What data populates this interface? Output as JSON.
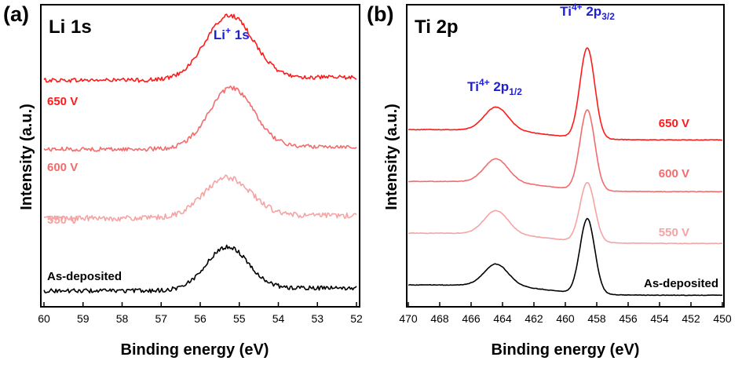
{
  "chart_data": [
    {
      "type": "line",
      "panel_letter": "(a)",
      "title": "Li 1s",
      "peak_labels": [
        {
          "base": "Li",
          "sup": "+",
          "rest": " 1s",
          "x": 55.2
        }
      ],
      "xlabel": "Binding energy (eV)",
      "ylabel": "Intensity (a.u.)",
      "xlim": [
        60,
        52
      ],
      "x_ticks": [
        60,
        59,
        58,
        57,
        56,
        55,
        54,
        53,
        52
      ],
      "yticks_shown": false,
      "series": [
        {
          "name": "650 V",
          "color": "#ff1a1a",
          "offset": 3.0,
          "baseline": 0.1,
          "peak_center": 55.25,
          "peak_height": 0.9,
          "peak_width": 0.85,
          "noise": 0.03
        },
        {
          "name": "600 V",
          "color": "#f26c6c",
          "offset": 2.0,
          "baseline": 0.1,
          "peak_center": 55.2,
          "peak_height": 0.85,
          "peak_width": 0.8,
          "noise": 0.03
        },
        {
          "name": "550 V",
          "color": "#f5a3a3",
          "offset": 1.0,
          "baseline": 0.1,
          "peak_center": 55.3,
          "peak_height": 0.55,
          "peak_width": 0.85,
          "noise": 0.04
        },
        {
          "name": "As-deposited",
          "color": "#000000",
          "offset": 0.0,
          "baseline": 0.05,
          "peak_center": 55.3,
          "peak_height": 0.6,
          "peak_width": 0.75,
          "noise": 0.03
        }
      ]
    },
    {
      "type": "line",
      "panel_letter": "(b)",
      "title": "Ti 2p",
      "peak_labels": [
        {
          "base": "Ti",
          "sup": "4+",
          "rest": " 2p",
          "sub": "1/2",
          "x": 464.5
        },
        {
          "base": "Ti",
          "sup": "4+",
          "rest": " 2p",
          "sub": "3/2",
          "x": 458.6
        }
      ],
      "xlabel": "Binding energy (eV)",
      "ylabel": "Intensity (a.u.)",
      "xlim": [
        470,
        450
      ],
      "x_ticks": [
        470,
        468,
        466,
        464,
        462,
        460,
        458,
        456,
        454,
        452,
        450
      ],
      "yticks_shown": false,
      "series": [
        {
          "name": "650 V",
          "color": "#ff1a1a",
          "offset": 3.0,
          "baseline_left": 0.15,
          "baseline_right": -0.05,
          "peaks": [
            {
              "center": 464.4,
              "height": 0.45,
              "width": 0.9
            },
            {
              "center": 458.6,
              "height": 1.75,
              "width": 0.55
            }
          ]
        },
        {
          "name": "600 V",
          "color": "#f26c6c",
          "offset": 2.0,
          "baseline_left": 0.15,
          "baseline_right": -0.05,
          "peaks": [
            {
              "center": 464.4,
              "height": 0.45,
              "width": 0.9
            },
            {
              "center": 458.6,
              "height": 1.55,
              "width": 0.55
            }
          ]
        },
        {
          "name": "550 V",
          "color": "#f5a3a3",
          "offset": 1.0,
          "baseline_left": 0.15,
          "baseline_right": -0.05,
          "peaks": [
            {
              "center": 464.4,
              "height": 0.45,
              "width": 0.9
            },
            {
              "center": 458.6,
              "height": 1.15,
              "width": 0.55
            }
          ]
        },
        {
          "name": "As-deposited",
          "color": "#000000",
          "offset": 0.0,
          "baseline_left": 0.15,
          "baseline_right": -0.05,
          "peaks": [
            {
              "center": 464.4,
              "height": 0.42,
              "width": 0.9
            },
            {
              "center": 458.6,
              "height": 1.45,
              "width": 0.55
            }
          ]
        }
      ]
    }
  ]
}
